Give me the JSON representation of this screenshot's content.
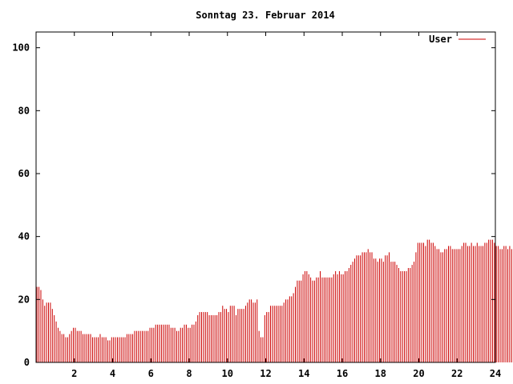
{
  "chart_data": {
    "type": "bar",
    "title": "Sonntag 23. Februar 2014",
    "xlabel": "",
    "ylabel": "",
    "xlim": [
      0,
      24
    ],
    "ylim": [
      0,
      105
    ],
    "xticks": [
      2,
      4,
      6,
      8,
      10,
      12,
      14,
      16,
      18,
      20,
      22,
      24
    ],
    "yticks": [
      0,
      20,
      40,
      60,
      80,
      100
    ],
    "grid": false,
    "legend_position": "top-right",
    "series": [
      {
        "name": "User",
        "color": "#cc0000",
        "step_hours": 0.1,
        "start_hour": 0.05,
        "values": [
          24,
          24,
          23,
          20,
          18,
          19,
          19,
          19,
          17,
          15,
          13,
          11,
          10,
          9,
          9,
          8,
          8,
          9,
          10,
          11,
          11,
          10,
          10,
          10,
          9,
          9,
          9,
          9,
          9,
          8,
          8,
          8,
          8,
          9,
          8,
          8,
          8,
          7,
          7,
          8,
          8,
          8,
          8,
          8,
          8,
          8,
          8,
          9,
          9,
          9,
          9,
          10,
          10,
          10,
          10,
          10,
          10,
          10,
          10,
          11,
          11,
          11,
          12,
          12,
          12,
          12,
          12,
          12,
          12,
          12,
          11,
          11,
          11,
          10,
          10,
          11,
          11,
          12,
          12,
          11,
          11,
          12,
          12,
          13,
          15,
          16,
          16,
          16,
          16,
          16,
          15,
          15,
          15,
          15,
          15,
          16,
          16,
          18,
          17,
          17,
          16,
          18,
          18,
          18,
          15,
          17,
          17,
          17,
          17,
          18,
          19,
          20,
          20,
          19,
          19,
          20,
          10,
          8,
          8,
          15,
          16,
          16,
          18,
          18,
          18,
          18,
          18,
          18,
          18,
          19,
          20,
          20,
          21,
          21,
          22,
          24,
          26,
          26,
          26,
          28,
          29,
          29,
          28,
          27,
          26,
          26,
          27,
          27,
          29,
          27,
          27,
          27,
          27,
          27,
          27,
          28,
          29,
          28,
          29,
          28,
          28,
          29,
          29,
          30,
          31,
          32,
          33,
          34,
          34,
          34,
          35,
          35,
          35,
          36,
          35,
          35,
          33,
          33,
          32,
          33,
          33,
          32,
          34,
          34,
          35,
          32,
          32,
          32,
          31,
          30,
          29,
          29,
          29,
          29,
          30,
          30,
          31,
          32,
          35,
          38,
          38,
          38,
          38,
          37,
          39,
          39,
          38,
          38,
          37,
          36,
          36,
          35,
          35,
          36,
          36,
          37,
          37,
          36,
          36,
          36,
          36,
          36,
          37,
          38,
          38,
          37,
          37,
          38,
          37,
          37,
          38,
          37,
          37,
          37,
          38,
          38,
          39,
          39,
          39,
          38,
          37,
          37,
          36,
          36,
          37,
          37,
          36,
          37,
          36,
          34,
          33,
          33,
          33,
          33,
          32,
          33,
          33,
          31,
          30,
          28,
          28,
          27,
          26,
          25,
          25,
          24,
          24,
          23,
          22,
          22,
          22,
          22,
          22,
          22,
          22,
          22,
          19,
          17,
          16,
          16,
          15
        ]
      }
    ]
  }
}
